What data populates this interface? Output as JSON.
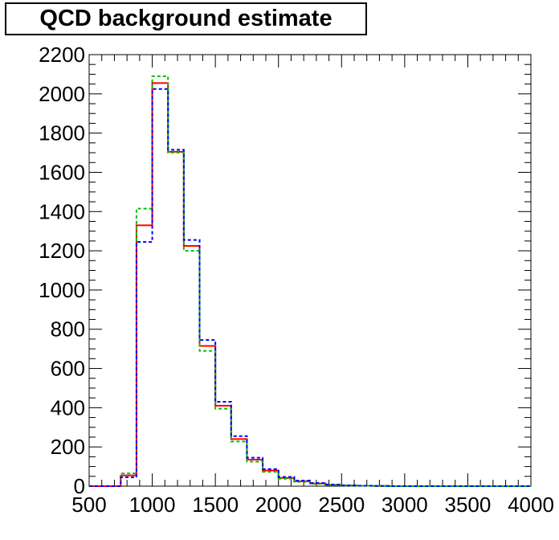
{
  "chart_data": {
    "type": "line",
    "title": "QCD background estimate",
    "xlabel": "",
    "ylabel": "",
    "xlim": [
      500,
      4000
    ],
    "ylim": [
      0,
      2200
    ],
    "x_ticks": [
      500,
      1000,
      1500,
      2000,
      2500,
      3000,
      3500,
      4000
    ],
    "y_ticks": [
      0,
      200,
      400,
      600,
      800,
      1000,
      1200,
      1400,
      1600,
      1800,
      2000,
      2200
    ],
    "grid": false,
    "bin_edges": [
      500,
      625,
      750,
      875,
      1000,
      1125,
      1250,
      1375,
      1500,
      1625,
      1750,
      1875,
      2000,
      2125,
      2250,
      2375,
      2500,
      2625,
      2750,
      2875,
      3000,
      3125,
      3250,
      3375,
      3500,
      3625,
      3750,
      3875,
      4000
    ],
    "series": [
      {
        "color": "#ff0000",
        "style": "solid",
        "values": [
          0,
          0,
          55,
          1330,
          2055,
          1705,
          1225,
          715,
          410,
          240,
          135,
          80,
          42,
          25,
          14,
          7,
          4,
          2,
          1,
          0,
          0,
          0,
          0,
          0,
          0,
          0,
          0,
          0
        ]
      },
      {
        "color": "#00c000",
        "style": "dashed",
        "values": [
          0,
          0,
          65,
          1415,
          2090,
          1700,
          1200,
          690,
          395,
          228,
          125,
          73,
          38,
          22,
          12,
          6,
          3,
          2,
          1,
          0,
          0,
          0,
          0,
          0,
          0,
          0,
          0,
          0
        ]
      },
      {
        "color": "#0000ff",
        "style": "dashed",
        "values": [
          0,
          0,
          45,
          1245,
          2025,
          1715,
          1255,
          745,
          430,
          255,
          145,
          87,
          47,
          28,
          16,
          8,
          4,
          2,
          1,
          0,
          0,
          0,
          0,
          0,
          0,
          0,
          0,
          0
        ]
      }
    ]
  }
}
